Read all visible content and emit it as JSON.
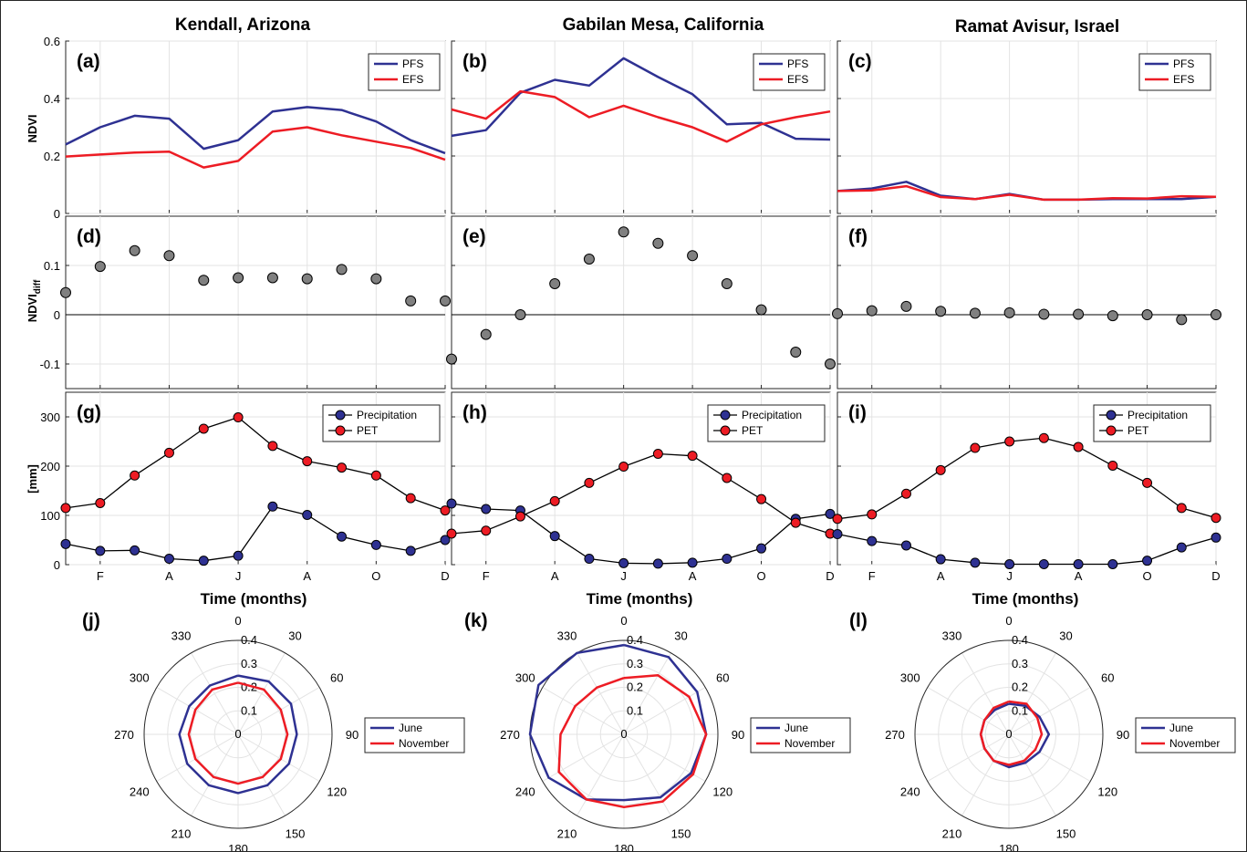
{
  "columns": [
    "Kendall, Arizona",
    "Gabilan Mesa, California",
    "Ramat Avisur, Israel"
  ],
  "xlabel": "Time (months)",
  "ylabels": {
    "ndvi": "NDVI",
    "ndvi_diff_main": "NDVI",
    "ndvi_diff_sub": "diff",
    "clim": "[mm]"
  },
  "month_ticks": [
    "F",
    "A",
    "J",
    "A",
    "O",
    "D"
  ],
  "colors": {
    "pfs": "#2e3192",
    "efs": "#ed1c24",
    "diff_marker": "#808080",
    "precip": "#2e3192",
    "pet": "#ed1c24",
    "june": "#2e3192",
    "november": "#ed1c24"
  },
  "chart_data": [
    {
      "id": "a",
      "panel_label": "(a)",
      "type": "line",
      "ylabel": "NDVI",
      "ylim": [
        0,
        0.6
      ],
      "yticks": [
        "0",
        "0.2",
        "0.4",
        "0.6"
      ],
      "x": [
        1,
        2,
        3,
        4,
        5,
        6,
        7,
        8,
        9,
        10,
        11,
        12
      ],
      "series": [
        {
          "name": "PFS",
          "values": [
            0.24,
            0.3,
            0.34,
            0.33,
            0.225,
            0.255,
            0.355,
            0.37,
            0.36,
            0.32,
            0.255,
            0.21
          ]
        },
        {
          "name": "EFS",
          "values": [
            0.198,
            0.205,
            0.212,
            0.215,
            0.16,
            0.183,
            0.285,
            0.3,
            0.272,
            0.25,
            0.228,
            0.187
          ]
        }
      ]
    },
    {
      "id": "b",
      "panel_label": "(b)",
      "type": "line",
      "ylim": [
        0,
        0.6
      ],
      "x": [
        1,
        2,
        3,
        4,
        5,
        6,
        7,
        8,
        9,
        10,
        11,
        12
      ],
      "series": [
        {
          "name": "PFS",
          "values": [
            0.27,
            0.29,
            0.42,
            0.465,
            0.445,
            0.54,
            0.475,
            0.415,
            0.31,
            0.315,
            0.26,
            0.257
          ]
        },
        {
          "name": "EFS",
          "values": [
            0.362,
            0.33,
            0.425,
            0.405,
            0.335,
            0.375,
            0.335,
            0.3,
            0.25,
            0.31,
            0.335,
            0.355
          ]
        }
      ]
    },
    {
      "id": "c",
      "panel_label": "(c)",
      "type": "line",
      "ylim": [
        0,
        0.6
      ],
      "x": [
        1,
        2,
        3,
        4,
        5,
        6,
        7,
        8,
        9,
        10,
        11,
        12
      ],
      "series": [
        {
          "name": "PFS",
          "values": [
            0.078,
            0.087,
            0.11,
            0.062,
            0.05,
            0.068,
            0.048,
            0.048,
            0.05,
            0.05,
            0.05,
            0.058
          ]
        },
        {
          "name": "EFS",
          "values": [
            0.078,
            0.08,
            0.095,
            0.057,
            0.05,
            0.065,
            0.048,
            0.048,
            0.053,
            0.052,
            0.06,
            0.058
          ]
        }
      ]
    },
    {
      "id": "d",
      "panel_label": "(d)",
      "type": "scatter",
      "ylim": [
        -0.15,
        0.2
      ],
      "yticks": [
        "-0.1",
        "0",
        "0.1"
      ],
      "x": [
        1,
        2,
        3,
        4,
        5,
        6,
        7,
        8,
        9,
        10,
        11,
        12
      ],
      "values": [
        0.045,
        0.098,
        0.13,
        0.12,
        0.07,
        0.075,
        0.075,
        0.073,
        0.092,
        0.073,
        0.028,
        0.028
      ]
    },
    {
      "id": "e",
      "panel_label": "(e)",
      "type": "scatter",
      "ylim": [
        -0.15,
        0.2
      ],
      "x": [
        1,
        2,
        3,
        4,
        5,
        6,
        7,
        8,
        9,
        10,
        11,
        12
      ],
      "values": [
        -0.09,
        -0.04,
        0.0,
        0.063,
        0.113,
        0.168,
        0.145,
        0.12,
        0.063,
        0.01,
        -0.076,
        -0.1
      ]
    },
    {
      "id": "f",
      "panel_label": "(f)",
      "type": "scatter",
      "ylim": [
        -0.15,
        0.2
      ],
      "x": [
        1,
        2,
        3,
        4,
        5,
        6,
        7,
        8,
        9,
        10,
        11,
        12
      ],
      "values": [
        0.002,
        0.008,
        0.017,
        0.007,
        0.003,
        0.004,
        0.001,
        0.001,
        -0.002,
        0.0,
        -0.01,
        0.0
      ]
    },
    {
      "id": "g",
      "panel_label": "(g)",
      "type": "line",
      "ylim": [
        0,
        350
      ],
      "yticks": [
        "0",
        "100",
        "200",
        "300"
      ],
      "x": [
        1,
        2,
        3,
        4,
        5,
        6,
        7,
        8,
        9,
        10,
        11,
        12
      ],
      "series": [
        {
          "name": "Precipitation",
          "values": [
            42,
            28,
            29,
            12,
            8,
            18,
            118,
            101,
            57,
            40,
            28,
            50
          ]
        },
        {
          "name": "PET",
          "values": [
            115,
            125,
            181,
            227,
            276,
            299,
            241,
            210,
            197,
            181,
            135,
            110
          ]
        }
      ]
    },
    {
      "id": "h",
      "panel_label": "(h)",
      "type": "line",
      "ylim": [
        0,
        350
      ],
      "x": [
        1,
        2,
        3,
        4,
        5,
        6,
        7,
        8,
        9,
        10,
        11,
        12
      ],
      "series": [
        {
          "name": "Precipitation",
          "values": [
            124,
            113,
            110,
            58,
            12,
            3,
            2,
            4,
            12,
            33,
            93,
            103
          ]
        },
        {
          "name": "PET",
          "values": [
            63,
            69,
            98,
            129,
            166,
            199,
            225,
            221,
            176,
            133,
            85,
            63
          ]
        }
      ]
    },
    {
      "id": "i",
      "panel_label": "(i)",
      "type": "line",
      "ylim": [
        0,
        350
      ],
      "x": [
        1,
        2,
        3,
        4,
        5,
        6,
        7,
        8,
        9,
        10,
        11,
        12
      ],
      "series": [
        {
          "name": "Precipitation",
          "values": [
            62,
            48,
            39,
            11,
            4,
            1,
            1,
            1,
            1,
            8,
            35,
            55
          ]
        },
        {
          "name": "PET",
          "values": [
            93,
            102,
            144,
            192,
            237,
            250,
            257,
            239,
            201,
            166,
            115,
            95
          ]
        }
      ]
    },
    {
      "id": "j",
      "panel_label": "(j)",
      "type": "polar-line",
      "rlim": [
        0,
        0.4
      ],
      "angles": [
        0,
        30,
        60,
        90,
        120,
        150,
        180,
        210,
        240,
        270,
        300,
        330
      ],
      "rticks": [
        "0",
        "0.1",
        "0.2",
        "0.3",
        "0.4"
      ],
      "series": [
        {
          "name": "June",
          "values": [
            0.25,
            0.26,
            0.26,
            0.25,
            0.25,
            0.25,
            0.25,
            0.25,
            0.25,
            0.25,
            0.24,
            0.24
          ]
        },
        {
          "name": "November",
          "values": [
            0.22,
            0.22,
            0.21,
            0.21,
            0.21,
            0.21,
            0.21,
            0.21,
            0.21,
            0.21,
            0.21,
            0.22
          ]
        }
      ]
    },
    {
      "id": "k",
      "panel_label": "(k)",
      "type": "polar-line",
      "rlim": [
        0,
        0.4
      ],
      "angles": [
        0,
        30,
        60,
        90,
        120,
        150,
        180,
        210,
        240,
        270,
        300,
        330
      ],
      "series": [
        {
          "name": "June",
          "values": [
            0.38,
            0.38,
            0.36,
            0.35,
            0.33,
            0.31,
            0.28,
            0.32,
            0.37,
            0.4,
            0.42,
            0.4
          ]
        },
        {
          "name": "November",
          "values": [
            0.24,
            0.29,
            0.32,
            0.35,
            0.34,
            0.33,
            0.31,
            0.32,
            0.32,
            0.27,
            0.24,
            0.23
          ]
        }
      ]
    },
    {
      "id": "l",
      "panel_label": "(l)",
      "type": "polar-line",
      "rlim": [
        0,
        0.4
      ],
      "angles": [
        0,
        30,
        60,
        90,
        120,
        150,
        180,
        210,
        240,
        270,
        300,
        330
      ],
      "series": [
        {
          "name": "June",
          "values": [
            0.13,
            0.14,
            0.15,
            0.17,
            0.15,
            0.14,
            0.14,
            0.13,
            0.12,
            0.12,
            0.12,
            0.12
          ]
        },
        {
          "name": "November",
          "values": [
            0.14,
            0.15,
            0.14,
            0.14,
            0.13,
            0.13,
            0.13,
            0.13,
            0.12,
            0.12,
            0.12,
            0.13
          ]
        }
      ]
    }
  ]
}
